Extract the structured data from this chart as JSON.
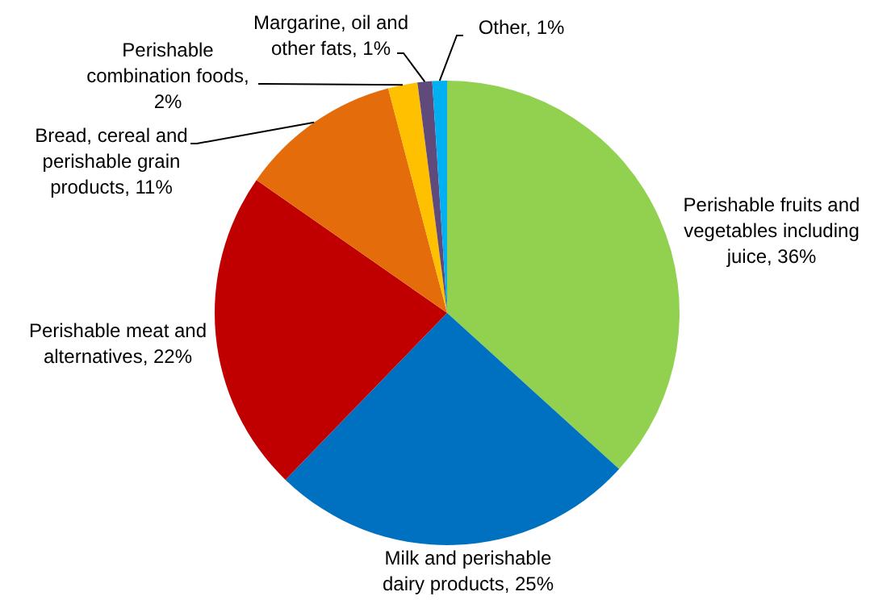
{
  "chart_data": {
    "type": "pie",
    "categories": [
      "Perishable fruits and vegetables including juice, 36%",
      "Milk and perishable dairy products, 25%",
      "Perishable meat and alternatives, 22%",
      "Bread, cereal and perishable grain products, 11%",
      "Perishable combination foods, 2%",
      "Margarine, oil and other fats, 1%",
      "Other, 1%"
    ],
    "values": [
      36,
      25,
      22,
      11,
      2,
      1,
      1
    ],
    "colors": [
      "#92d050",
      "#0070c0",
      "#c00000",
      "#e46c0a",
      "#ffc000",
      "#604a7b",
      "#00b0f0"
    ]
  }
}
